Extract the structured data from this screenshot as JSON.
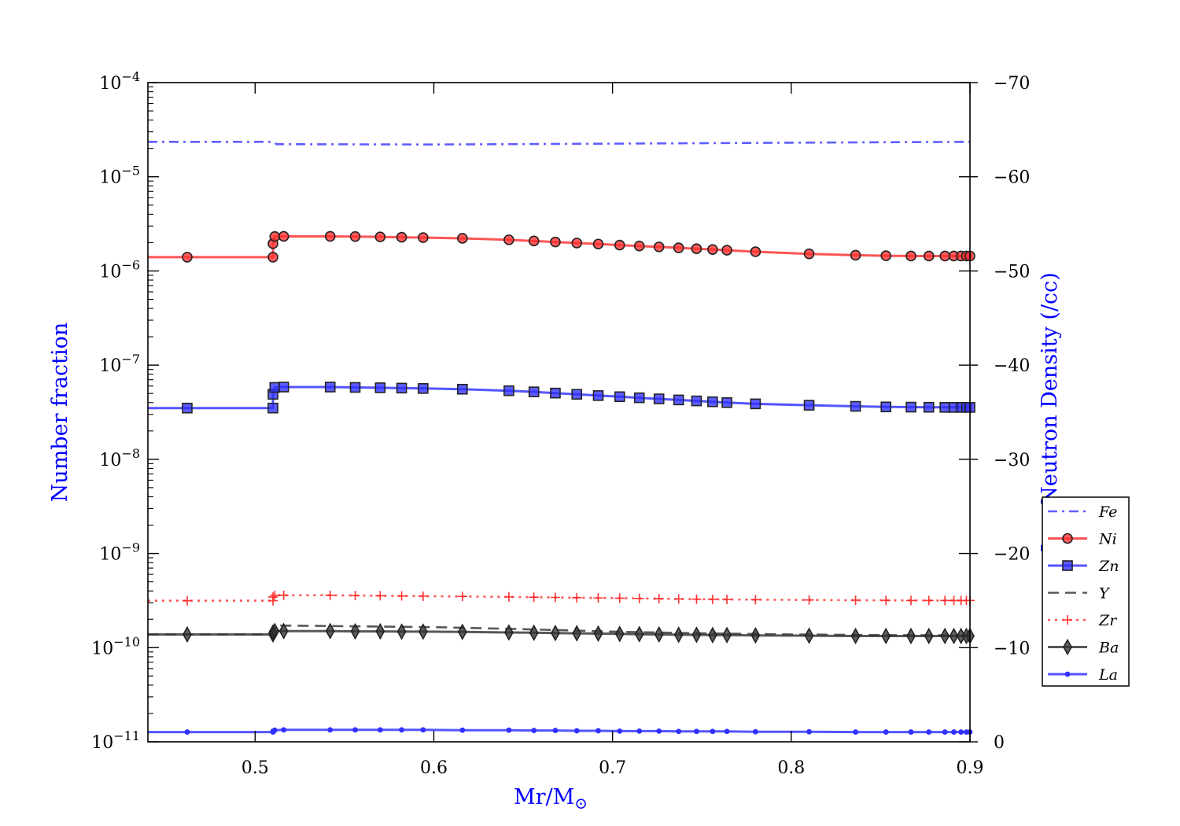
{
  "chart_data": {
    "type": "line",
    "xlabel": "Mr/M",
    "xlabel_symbol": "⊙",
    "ylabel_left": "Number fraction",
    "ylabel_right": "Log Neutron Density (/cc)",
    "axis_label_color": "#0000ff",
    "xlim": [
      0.44,
      0.9
    ],
    "xticks": [
      0.5,
      0.6,
      0.7,
      0.8,
      0.9
    ],
    "xtick_labels": [
      "0.5",
      "0.6",
      "0.7",
      "0.8",
      "0.9"
    ],
    "ylim_left_log10": [
      -11,
      -4
    ],
    "yticks_left_exponents": [
      -11,
      -10,
      -9,
      -8,
      -7,
      -6,
      -5,
      -4
    ],
    "ylim_right": [
      0,
      -70
    ],
    "yticks_right": [
      -70,
      -60,
      -50,
      -40,
      -30,
      -20,
      -10,
      0
    ],
    "ytick_labels_right": [
      "−70",
      "−60",
      "−50",
      "−40",
      "−30",
      "−20",
      "−10",
      "0"
    ],
    "legend_position": "lower-right",
    "marker_x": [
      0.462,
      0.51,
      0.51,
      0.511,
      0.516,
      0.542,
      0.556,
      0.57,
      0.582,
      0.594,
      0.616,
      0.642,
      0.656,
      0.668,
      0.68,
      0.692,
      0.704,
      0.715,
      0.726,
      0.737,
      0.747,
      0.756,
      0.764,
      0.78,
      0.81,
      0.836,
      0.853,
      0.867,
      0.877,
      0.886,
      0.891,
      0.895,
      0.898,
      0.9
    ],
    "series": [
      {
        "name": "Fe",
        "style": "dashdot",
        "marker": "none",
        "color": "#3a3aff",
        "x": [
          0.44,
          0.51,
          0.512,
          0.6,
          0.7,
          0.8,
          0.9
        ],
        "y": [
          2.35e-05,
          2.35e-05,
          2.22e-05,
          2.2e-05,
          2.25e-05,
          2.3e-05,
          2.35e-05
        ]
      },
      {
        "name": "Ni",
        "style": "solid",
        "marker": "circle",
        "color": "#ff3030",
        "x": [
          0.44,
          0.462,
          0.51,
          0.51,
          0.511,
          0.516,
          0.542,
          0.556,
          0.57,
          0.582,
          0.594,
          0.616,
          0.642,
          0.656,
          0.668,
          0.68,
          0.692,
          0.704,
          0.715,
          0.726,
          0.737,
          0.747,
          0.756,
          0.764,
          0.78,
          0.81,
          0.836,
          0.853,
          0.867,
          0.877,
          0.886,
          0.891,
          0.895,
          0.898,
          0.9
        ],
        "y": [
          1.4e-06,
          1.4e-06,
          1.4e-06,
          1.95e-06,
          2.32e-06,
          2.33e-06,
          2.33e-06,
          2.32e-06,
          2.3e-06,
          2.28e-06,
          2.26e-06,
          2.22e-06,
          2.14e-06,
          2.08e-06,
          2.03e-06,
          1.98e-06,
          1.93e-06,
          1.88e-06,
          1.84e-06,
          1.8e-06,
          1.76e-06,
          1.72e-06,
          1.69e-06,
          1.66e-06,
          1.6e-06,
          1.52e-06,
          1.47e-06,
          1.45e-06,
          1.44e-06,
          1.44e-06,
          1.44e-06,
          1.44e-06,
          1.44e-06,
          1.44e-06,
          1.44e-06
        ]
      },
      {
        "name": "Zn",
        "style": "solid",
        "marker": "square",
        "color": "#3030ff",
        "x": [
          0.44,
          0.462,
          0.51,
          0.51,
          0.511,
          0.516,
          0.542,
          0.556,
          0.57,
          0.582,
          0.594,
          0.616,
          0.642,
          0.656,
          0.668,
          0.68,
          0.692,
          0.704,
          0.715,
          0.726,
          0.737,
          0.747,
          0.756,
          0.764,
          0.78,
          0.81,
          0.836,
          0.853,
          0.867,
          0.877,
          0.886,
          0.891,
          0.895,
          0.898,
          0.9
        ],
        "y": [
          3.5e-08,
          3.5e-08,
          3.5e-08,
          4.9e-08,
          5.8e-08,
          5.85e-08,
          5.85e-08,
          5.8e-08,
          5.75e-08,
          5.7e-08,
          5.65e-08,
          5.55e-08,
          5.35e-08,
          5.2e-08,
          5.05e-08,
          4.9e-08,
          4.75e-08,
          4.62e-08,
          4.5e-08,
          4.38e-08,
          4.27e-08,
          4.17e-08,
          4.08e-08,
          4e-08,
          3.88e-08,
          3.75e-08,
          3.65e-08,
          3.6e-08,
          3.58e-08,
          3.57e-08,
          3.56e-08,
          3.56e-08,
          3.56e-08,
          3.56e-08,
          3.56e-08
        ]
      },
      {
        "name": "Y",
        "style": "dashed",
        "marker": "none",
        "color": "#333333",
        "x": [
          0.44,
          0.51,
          0.512,
          0.6,
          0.65,
          0.7,
          0.75,
          0.8,
          0.85,
          0.9
        ],
        "y": [
          1.38e-10,
          1.38e-10,
          1.72e-10,
          1.65e-10,
          1.57e-10,
          1.48e-10,
          1.42e-10,
          1.38e-10,
          1.36e-10,
          1.35e-10
        ]
      },
      {
        "name": "Zr",
        "style": "dotted",
        "marker": "plus",
        "color": "#ff3030",
        "x": [
          0.44,
          0.462,
          0.51,
          0.51,
          0.511,
          0.516,
          0.542,
          0.556,
          0.57,
          0.582,
          0.594,
          0.616,
          0.642,
          0.656,
          0.668,
          0.68,
          0.692,
          0.704,
          0.715,
          0.726,
          0.737,
          0.747,
          0.756,
          0.764,
          0.78,
          0.81,
          0.836,
          0.853,
          0.867,
          0.877,
          0.886,
          0.891,
          0.895,
          0.898,
          0.9
        ],
        "y": [
          3.15e-10,
          3.15e-10,
          3.15e-10,
          3.45e-10,
          3.6e-10,
          3.6e-10,
          3.6e-10,
          3.58e-10,
          3.56e-10,
          3.54e-10,
          3.52e-10,
          3.5e-10,
          3.46e-10,
          3.43e-10,
          3.41e-10,
          3.39e-10,
          3.37e-10,
          3.35e-10,
          3.33e-10,
          3.31e-10,
          3.29e-10,
          3.27e-10,
          3.26e-10,
          3.25e-10,
          3.23e-10,
          3.21e-10,
          3.19e-10,
          3.18e-10,
          3.17e-10,
          3.17e-10,
          3.17e-10,
          3.17e-10,
          3.17e-10,
          3.17e-10,
          3.17e-10
        ]
      },
      {
        "name": "Ba",
        "style": "solid",
        "marker": "diamond",
        "color": "#333333",
        "x": [
          0.44,
          0.462,
          0.51,
          0.51,
          0.511,
          0.516,
          0.542,
          0.556,
          0.57,
          0.582,
          0.594,
          0.616,
          0.642,
          0.656,
          0.668,
          0.68,
          0.692,
          0.704,
          0.715,
          0.726,
          0.737,
          0.747,
          0.756,
          0.764,
          0.78,
          0.81,
          0.836,
          0.853,
          0.867,
          0.877,
          0.886,
          0.891,
          0.895,
          0.898,
          0.9
        ],
        "y": [
          1.38e-10,
          1.38e-10,
          1.38e-10,
          1.45e-10,
          1.5e-10,
          1.5e-10,
          1.5e-10,
          1.49e-10,
          1.49e-10,
          1.48e-10,
          1.48e-10,
          1.47e-10,
          1.45e-10,
          1.44e-10,
          1.43e-10,
          1.42e-10,
          1.41e-10,
          1.4e-10,
          1.39e-10,
          1.38e-10,
          1.37e-10,
          1.37e-10,
          1.36e-10,
          1.36e-10,
          1.35e-10,
          1.34e-10,
          1.33e-10,
          1.33e-10,
          1.33e-10,
          1.33e-10,
          1.33e-10,
          1.33e-10,
          1.33e-10,
          1.33e-10,
          1.33e-10
        ]
      },
      {
        "name": "La",
        "style": "solid",
        "marker": "dot",
        "color": "#3030ff",
        "x": [
          0.44,
          0.462,
          0.51,
          0.51,
          0.511,
          0.516,
          0.542,
          0.556,
          0.57,
          0.582,
          0.594,
          0.616,
          0.642,
          0.656,
          0.668,
          0.68,
          0.692,
          0.704,
          0.715,
          0.726,
          0.737,
          0.747,
          0.756,
          0.764,
          0.78,
          0.81,
          0.836,
          0.853,
          0.867,
          0.877,
          0.886,
          0.891,
          0.895,
          0.898,
          0.9
        ],
        "y": [
          1.27e-11,
          1.27e-11,
          1.27e-11,
          1.3e-11,
          1.33e-11,
          1.34e-11,
          1.34e-11,
          1.34e-11,
          1.34e-11,
          1.34e-11,
          1.34e-11,
          1.33e-11,
          1.33e-11,
          1.32e-11,
          1.32e-11,
          1.31e-11,
          1.31e-11,
          1.3e-11,
          1.3e-11,
          1.3e-11,
          1.29e-11,
          1.29e-11,
          1.29e-11,
          1.29e-11,
          1.28e-11,
          1.28e-11,
          1.27e-11,
          1.27e-11,
          1.27e-11,
          1.27e-11,
          1.27e-11,
          1.27e-11,
          1.27e-11,
          1.27e-11,
          1.27e-11
        ]
      }
    ]
  }
}
